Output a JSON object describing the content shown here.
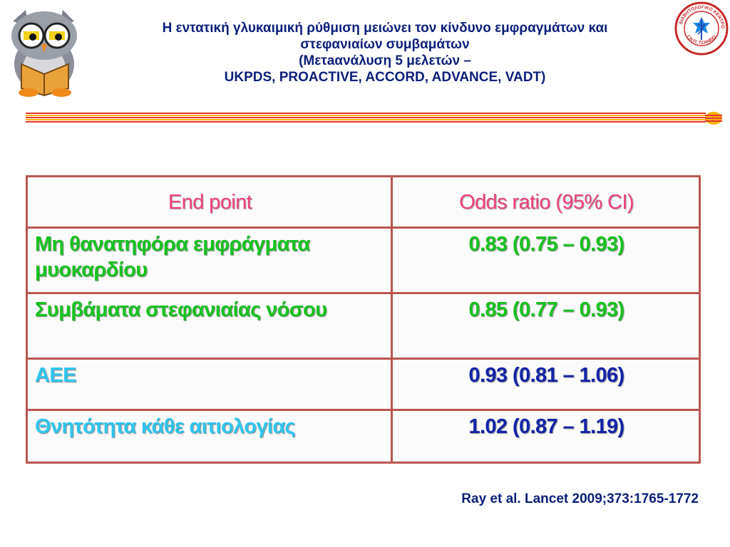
{
  "header": {
    "title_lines": [
      "Η εντατική γλυκαιμική ρύθμιση μειώνει τον κίνδυνο εμφραγμάτων και",
      "στεφανιαίων συμβαμάτων",
      "(Μετaανάλυση 5 μελετών –",
      "UKPDS, PROACTIVE, ACCORD, ADVANCE, VADT)"
    ],
    "logo_left_icon": "reading-owl-icon",
    "logo_right_icon": "diabetes-center-seal-icon",
    "logo_right_text": "ΔΙΑΒΗΤΟΛΟΓΙΚΟ ΚΕΝΤΡΟ Γ.Ν.Π. ΤΖΑΝΕΙΟ"
  },
  "table": {
    "headers": [
      "End point",
      "Odds ratio (95% CI)"
    ],
    "rows": [
      {
        "endpoint": "Μη θανατηφόρα εμφράγματα μυοκαρδίου",
        "odds_ratio": "0.83 (0.75 – 0.93)"
      },
      {
        "endpoint": "Συμβάματα στεφανιαίας νόσου",
        "odds_ratio": "0.85 (0.77 – 0.93)"
      },
      {
        "endpoint": "ΑΕΕ",
        "odds_ratio": "0.93 (0.81 – 1.06)"
      },
      {
        "endpoint": "Θνητότητα κάθε αιτιολογίας",
        "odds_ratio": "1.02 (0.87 – 1.19)"
      }
    ]
  },
  "citation": "Ray et al. Lancet 2009;373:1765-1772",
  "colors": {
    "header_text": "#f0407a",
    "significant_text": "#16c21f",
    "nonsignificant_endpoint": "#2ec5ee",
    "nonsignificant_value": "#1424a8",
    "border": "#b9554f",
    "title": "#0b1f7a"
  }
}
